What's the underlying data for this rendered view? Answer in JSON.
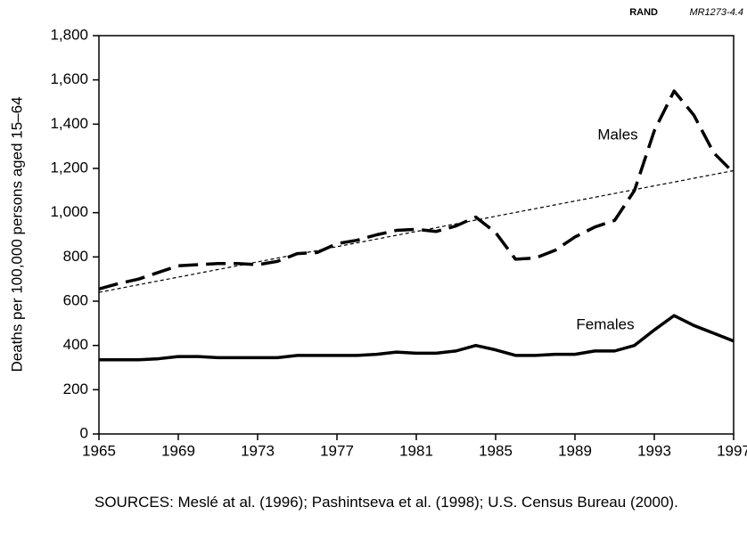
{
  "chart_data": {
    "type": "line",
    "header": {
      "org": "RAND",
      "code": "MR1273-4.4"
    },
    "ylabel": "Deaths per 100,000 persons aged 15–64",
    "x": [
      1965,
      1966,
      1967,
      1968,
      1969,
      1970,
      1971,
      1972,
      1973,
      1974,
      1975,
      1976,
      1977,
      1978,
      1979,
      1980,
      1981,
      1982,
      1983,
      1984,
      1985,
      1986,
      1987,
      1988,
      1989,
      1990,
      1991,
      1992,
      1993,
      1994,
      1995,
      1996,
      1997
    ],
    "series": [
      {
        "name": "Males",
        "color": "#000000",
        "dash": true,
        "values": [
          655,
          680,
          700,
          730,
          760,
          765,
          770,
          770,
          765,
          780,
          815,
          820,
          860,
          875,
          900,
          920,
          925,
          915,
          940,
          980,
          910,
          790,
          795,
          830,
          890,
          935,
          965,
          1100,
          1370,
          1550,
          1440,
          1270,
          1180
        ]
      },
      {
        "name": "Females",
        "color": "#000000",
        "dash": false,
        "values": [
          335,
          335,
          335,
          340,
          350,
          350,
          345,
          345,
          345,
          345,
          355,
          355,
          355,
          355,
          360,
          370,
          365,
          365,
          375,
          400,
          380,
          355,
          355,
          360,
          360,
          375,
          375,
          400,
          470,
          535,
          490,
          455,
          420
        ]
      }
    ],
    "trend": {
      "x": [
        1965,
        1997
      ],
      "values": [
        640,
        1190
      ]
    },
    "xlim": [
      1965,
      1997
    ],
    "xticks": [
      1965,
      1969,
      1973,
      1977,
      1981,
      1985,
      1989,
      1993,
      1997
    ],
    "ylim": [
      0,
      1800
    ],
    "yticks": [
      0,
      200,
      400,
      600,
      800,
      {
        "value": 1000,
        "label": "1,000"
      },
      {
        "value": 1200,
        "label": "1,200"
      },
      {
        "value": 1400,
        "label": "1,400"
      },
      {
        "value": 1600,
        "label": "1,600"
      },
      {
        "value": 1800,
        "label": "1,800"
      }
    ],
    "source": "SOURCES: Meslé at al. (1996); Pashintseva et al. (1998); U.S. Census Bureau (2000)."
  }
}
